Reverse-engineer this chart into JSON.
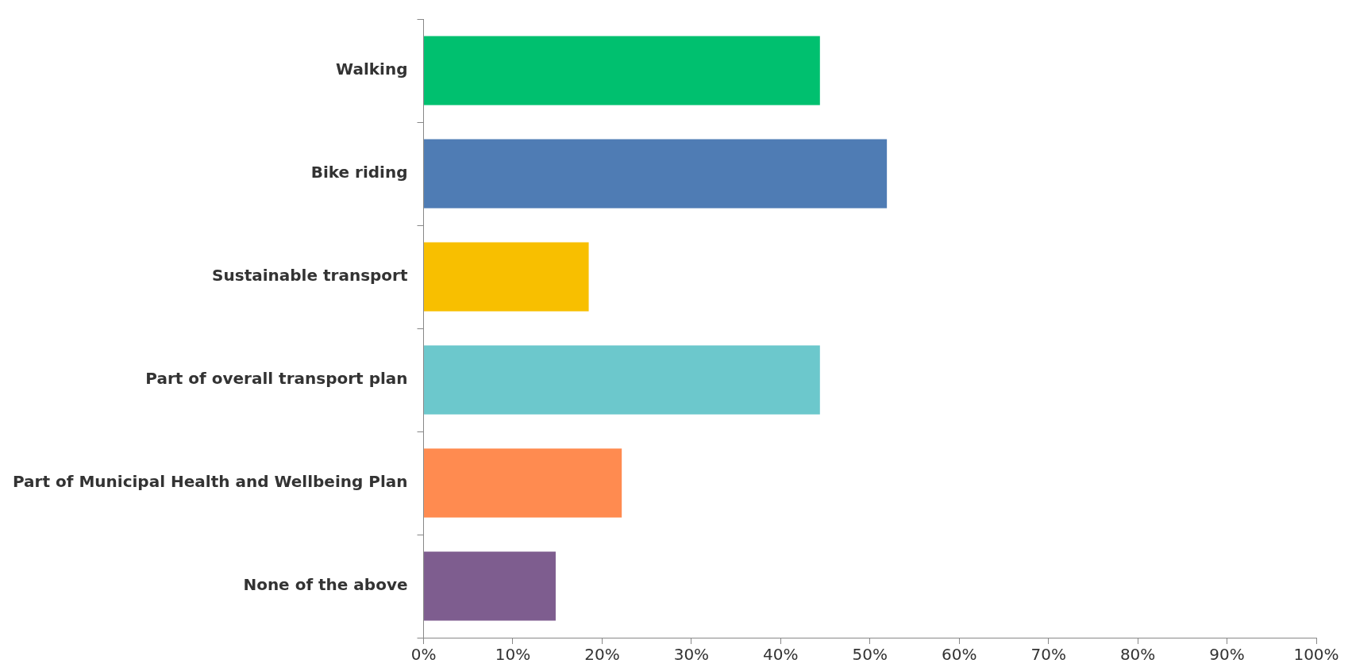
{
  "chart_data": {
    "type": "bar",
    "orientation": "horizontal",
    "categories": [
      "Walking",
      "Bike riding",
      "Sustainable transport",
      "Part of overall transport plan",
      "Part of Municipal Health and Wellbeing Plan",
      "None of the above"
    ],
    "values": [
      44.4,
      51.9,
      18.5,
      44.4,
      22.2,
      14.8
    ],
    "colors": [
      "#00c06f",
      "#4f7cb4",
      "#f8bf00",
      "#6cc8cc",
      "#ff8b50",
      "#7e5d8f"
    ],
    "xlim": [
      0,
      100
    ],
    "xticks": [
      {
        "value": 0,
        "label": "0%"
      },
      {
        "value": 10,
        "label": "10%"
      },
      {
        "value": 20,
        "label": "20%"
      },
      {
        "value": 30,
        "label": "30%"
      },
      {
        "value": 40,
        "label": "40%"
      },
      {
        "value": 50,
        "label": "50%"
      },
      {
        "value": 60,
        "label": "60%"
      },
      {
        "value": 70,
        "label": "70%"
      },
      {
        "value": 80,
        "label": "80%"
      },
      {
        "value": 90,
        "label": "90%"
      },
      {
        "value": 100,
        "label": "100%"
      }
    ],
    "grid": false,
    "legend": false
  }
}
